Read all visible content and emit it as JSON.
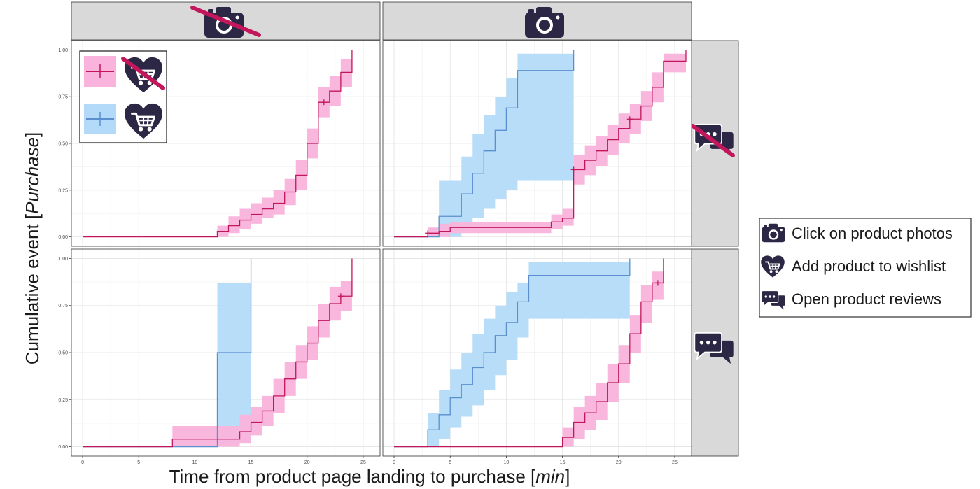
{
  "axes": {
    "xlabel_prefix": "Time from product page landing to purchase [",
    "xlabel_unit": "min",
    "xlabel_suffix": "]",
    "ylabel_prefix": "Cumulative event [",
    "ylabel_event": "Purchase",
    "ylabel_suffix": "]"
  },
  "legend": {
    "items": [
      {
        "icon": "camera-icon",
        "label": "Click on product photos"
      },
      {
        "icon": "heart-cart-icon",
        "label": "Add product to wishlist"
      },
      {
        "icon": "chat-bubbles-icon",
        "label": "Open product reviews"
      }
    ]
  },
  "colors": {
    "no_wishlist_line": "#c2185b",
    "no_wishlist_band": "#f9b3dc",
    "wishlist_line": "#5b8fcf",
    "wishlist_band": "#b3dbf9",
    "overlap_band": "#c9bfe6",
    "strip": "#d9d9d9",
    "icon": "#2b2744",
    "strike": "#c2185b"
  },
  "chart_data": {
    "type": "line",
    "subtype": "step cumulative incidence with confidence bands",
    "xlim": [
      -1,
      26.5
    ],
    "ylim": [
      -0.05,
      1.05
    ],
    "xticks": [
      0,
      5,
      10,
      15,
      20,
      25
    ],
    "yticks": [
      0,
      0.25,
      0.5,
      0.75,
      1
    ],
    "xtick_labels": [
      "0",
      "5",
      "10",
      "15",
      "20",
      "25"
    ],
    "ytick_labels": [
      "0.00",
      "0.25",
      "0.50",
      "0.75",
      "1.00"
    ],
    "grid": true,
    "facet_columns": [
      "no photo click",
      "photo click"
    ],
    "facet_rows": [
      "no reviews opened",
      "reviews opened"
    ],
    "legend_inset": {
      "panel": "top-left",
      "placement": "top-left",
      "entries": [
        "no wishlist",
        "wishlist"
      ]
    },
    "panels": [
      {
        "row": 0,
        "col": 0,
        "series": [
          {
            "group": "no_wishlist",
            "x": [
              0,
              12,
              13,
              14,
              15,
              16,
              17,
              18,
              19,
              20,
              21,
              22,
              23,
              24
            ],
            "y": [
              0,
              0.03,
              0.06,
              0.09,
              0.12,
              0.15,
              0.18,
              0.24,
              0.33,
              0.5,
              0.72,
              0.78,
              0.88,
              1.0
            ],
            "lower": [
              0,
              0,
              0.02,
              0.04,
              0.07,
              0.1,
              0.12,
              0.17,
              0.25,
              0.42,
              0.64,
              0.7,
              0.8,
              0.94
            ],
            "upper": [
              0,
              0.06,
              0.11,
              0.15,
              0.18,
              0.21,
              0.25,
              0.31,
              0.41,
              0.58,
              0.8,
              0.86,
              0.95,
              1.0
            ],
            "censored": [
              {
                "x": 21.5,
                "y": 0.72
              }
            ]
          }
        ]
      },
      {
        "row": 0,
        "col": 1,
        "series": [
          {
            "group": "wishlist",
            "x": [
              0,
              4,
              6,
              7,
              8,
              9,
              10,
              11,
              16
            ],
            "y": [
              0,
              0.11,
              0.23,
              0.34,
              0.46,
              0.57,
              0.69,
              0.89,
              1.0
            ],
            "lower": [
              0,
              0,
              0.05,
              0.1,
              0.15,
              0.2,
              0.25,
              0.3,
              1.0
            ],
            "upper": [
              0,
              0.3,
              0.43,
              0.55,
              0.65,
              0.75,
              0.85,
              0.98,
              1.0
            ]
          },
          {
            "group": "no_wishlist",
            "x": [
              0,
              3,
              4,
              5,
              14,
              15,
              16,
              17,
              18,
              19,
              20,
              21,
              22,
              23,
              24,
              26
            ],
            "y": [
              0,
              0.02,
              0.03,
              0.05,
              0.08,
              0.1,
              0.36,
              0.41,
              0.46,
              0.52,
              0.58,
              0.63,
              0.7,
              0.8,
              0.94,
              1.0
            ],
            "lower": [
              0,
              0,
              0,
              0.02,
              0.04,
              0.06,
              0.28,
              0.33,
              0.38,
              0.44,
              0.5,
              0.55,
              0.62,
              0.72,
              0.88,
              1.0
            ],
            "upper": [
              0,
              0.05,
              0.07,
              0.08,
              0.12,
              0.15,
              0.44,
              0.49,
              0.54,
              0.6,
              0.66,
              0.71,
              0.78,
              0.88,
              0.98,
              1.0
            ],
            "censored": [
              {
                "x": 3,
                "y": 0.02
              },
              {
                "x": 16,
                "y": 0.36
              },
              {
                "x": 21,
                "y": 0.63
              }
            ]
          }
        ]
      },
      {
        "row": 1,
        "col": 0,
        "series": [
          {
            "group": "wishlist",
            "x": [
              0,
              12,
              15
            ],
            "y": [
              0,
              0.5,
              1.0
            ],
            "lower": [
              0,
              0.02,
              1.0
            ],
            "upper": [
              0,
              0.87,
              1.0
            ]
          },
          {
            "group": "no_wishlist",
            "x": [
              0,
              8,
              12,
              14,
              15,
              16,
              17,
              18,
              19,
              20,
              21,
              22,
              23,
              24
            ],
            "y": [
              0,
              0.04,
              0.04,
              0.08,
              0.13,
              0.19,
              0.27,
              0.36,
              0.45,
              0.55,
              0.67,
              0.76,
              0.8,
              1.0
            ],
            "lower": [
              0,
              0,
              0,
              0.02,
              0.06,
              0.11,
              0.18,
              0.27,
              0.36,
              0.46,
              0.58,
              0.67,
              0.72,
              0.94
            ],
            "upper": [
              0,
              0.11,
              0.11,
              0.17,
              0.21,
              0.27,
              0.36,
              0.45,
              0.54,
              0.64,
              0.76,
              0.85,
              0.88,
              1.0
            ],
            "censored": [
              {
                "x": 23,
                "y": 0.8
              }
            ]
          }
        ]
      },
      {
        "row": 1,
        "col": 1,
        "series": [
          {
            "group": "wishlist",
            "x": [
              0,
              3,
              4,
              5,
              6,
              7,
              8,
              9,
              10,
              11,
              12,
              21
            ],
            "y": [
              0,
              0.09,
              0.17,
              0.26,
              0.33,
              0.42,
              0.5,
              0.59,
              0.66,
              0.77,
              0.91,
              1.0
            ],
            "lower": [
              0,
              0,
              0.04,
              0.1,
              0.16,
              0.22,
              0.3,
              0.38,
              0.46,
              0.58,
              0.68,
              1.0
            ],
            "upper": [
              0,
              0.18,
              0.3,
              0.41,
              0.5,
              0.6,
              0.68,
              0.75,
              0.82,
              0.87,
              0.98,
              1.0
            ]
          },
          {
            "group": "no_wishlist",
            "x": [
              0,
              15,
              16,
              17,
              18,
              19,
              20,
              21,
              22,
              23,
              24
            ],
            "y": [
              0,
              0.05,
              0.13,
              0.18,
              0.24,
              0.34,
              0.44,
              0.6,
              0.77,
              0.87,
              1.0
            ],
            "lower": [
              0,
              0,
              0.04,
              0.09,
              0.14,
              0.24,
              0.34,
              0.5,
              0.66,
              0.78,
              0.94
            ],
            "upper": [
              0,
              0.1,
              0.21,
              0.27,
              0.34,
              0.44,
              0.54,
              0.7,
              0.86,
              0.93,
              1.0
            ],
            "censored": [
              {
                "x": 23.5,
                "y": 0.87
              }
            ]
          }
        ]
      }
    ]
  }
}
